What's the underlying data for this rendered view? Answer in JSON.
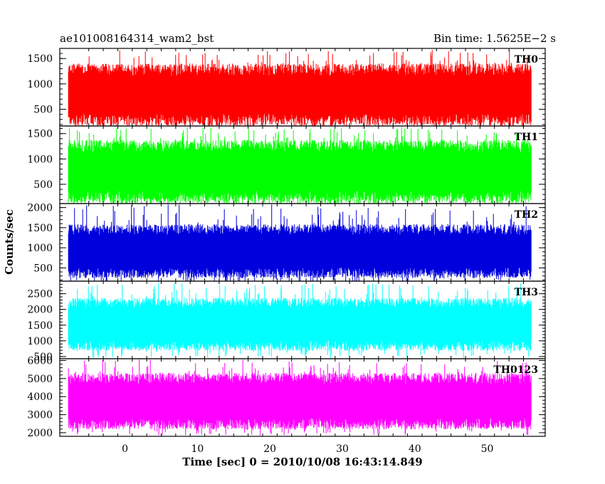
{
  "header": {
    "file_title": "ae101008164314_wam2_bst",
    "bin_time": "Bin time: 1.5625E−2 s"
  },
  "chart_data": {
    "type": "line",
    "title": "ae101008164314_wam2_bst",
    "xlabel": "Time [sec] 0 = 2010/10/08 16:43:14.849",
    "ylabel": "Counts/sec",
    "xlim": [
      -9,
      58
    ],
    "x_range_data": [
      -7.8,
      56.1
    ],
    "x_ticks_major": [
      0,
      10,
      20,
      30,
      40,
      50
    ],
    "grid": false,
    "panels": [
      {
        "name": "TH0",
        "color": "#ff0000",
        "ylim": [
          170,
          1700
        ],
        "yticks": [
          500,
          1000,
          1500
        ],
        "band_low": 300,
        "band_high": 1280,
        "spike_min": 50,
        "spike_max": 1680
      },
      {
        "name": "TH1",
        "color": "#00ff00",
        "ylim": [
          120,
          1650
        ],
        "yticks": [
          500,
          1000,
          1500
        ],
        "band_low": 250,
        "band_high": 1250,
        "spike_min": 70,
        "spike_max": 1630
      },
      {
        "name": "TH2",
        "color": "#0000dd",
        "ylim": [
          170,
          2100
        ],
        "yticks": [
          500,
          1000,
          1500,
          2000
        ],
        "band_low": 380,
        "band_high": 1450,
        "spike_min": 80,
        "spike_max": 2080
      },
      {
        "name": "TH3",
        "color": "#00ffff",
        "ylim": [
          430,
          2900
        ],
        "yticks": [
          500,
          1000,
          1500,
          2000,
          2500
        ],
        "band_low": 850,
        "band_high": 2200,
        "spike_min": 450,
        "spike_max": 2850
      },
      {
        "name": "TH0123",
        "color": "#ff00ff",
        "ylim": [
          1800,
          6100
        ],
        "yticks": [
          2000,
          3000,
          4000,
          5000,
          6000
        ],
        "band_low": 2500,
        "band_high": 5000,
        "spike_min": 1850,
        "spike_max": 6050
      }
    ]
  }
}
